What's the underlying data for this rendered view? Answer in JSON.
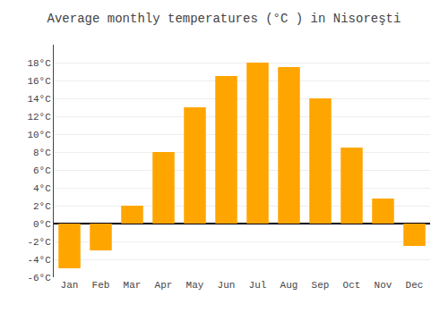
{
  "chart_data": {
    "type": "bar",
    "title": "Average monthly temperatures (°C ) in Nisoreşti",
    "categories": [
      "Jan",
      "Feb",
      "Mar",
      "Apr",
      "May",
      "Jun",
      "Jul",
      "Aug",
      "Sep",
      "Oct",
      "Nov",
      "Dec"
    ],
    "values": [
      -5.0,
      -3.0,
      2.0,
      8.0,
      13.0,
      16.5,
      18.0,
      17.5,
      14.0,
      8.5,
      2.8,
      -2.5
    ],
    "color": "#FFA500",
    "ylim": [
      -6,
      20
    ],
    "yticks": [
      {
        "value": -6,
        "label": "-6°C"
      },
      {
        "value": -4,
        "label": "-4°C"
      },
      {
        "value": -2,
        "label": "-2°C"
      },
      {
        "value": 0,
        "label": "0°C"
      },
      {
        "value": 2,
        "label": "2°C"
      },
      {
        "value": 4,
        "label": "4°C"
      },
      {
        "value": 6,
        "label": "6°C"
      },
      {
        "value": 8,
        "label": "8°C"
      },
      {
        "value": 10,
        "label": "10°C"
      },
      {
        "value": 12,
        "label": "12°C"
      },
      {
        "value": 14,
        "label": "14°C"
      },
      {
        "value": 16,
        "label": "16°C"
      },
      {
        "value": 18,
        "label": "18°C"
      }
    ],
    "grid": true
  }
}
